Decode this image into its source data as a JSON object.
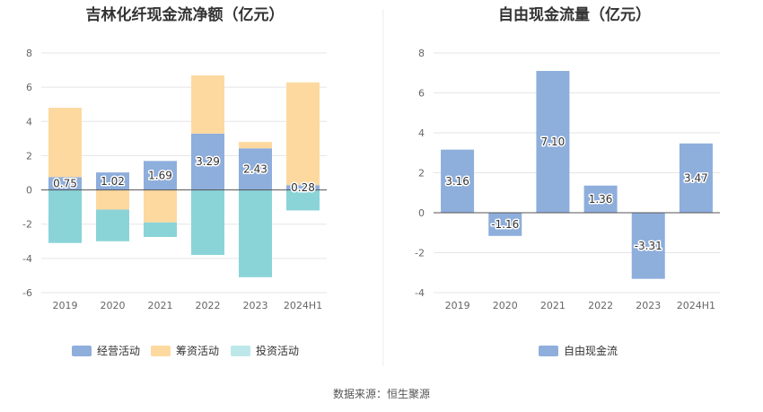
{
  "colors": {
    "operating": "#8eaedc",
    "financing": "#fdd9a0",
    "investing": "#8ad4d8",
    "investing_legend": "#bde8ea",
    "fcf": "#8eaedc"
  },
  "source": "数据来源：恒生聚源",
  "chart_data": [
    {
      "type": "bar",
      "stacked": true,
      "title": "吉林化纤现金流净额（亿元）",
      "categories": [
        "2019",
        "2020",
        "2021",
        "2022",
        "2023",
        "2024H1"
      ],
      "ylim": [
        -6,
        8
      ],
      "yticks": [
        -6,
        -4,
        -2,
        0,
        2,
        4,
        6,
        8
      ],
      "grid": true,
      "legend_position": "bottom",
      "series": [
        {
          "name": "经营活动",
          "values": [
            0.75,
            1.02,
            1.69,
            3.29,
            2.43,
            0.28
          ],
          "labels": [
            "0.75",
            "1.02",
            "1.69",
            "3.29",
            "2.43",
            "0.28"
          ]
        },
        {
          "name": "筹资活动",
          "values": [
            4.05,
            -1.15,
            -1.9,
            3.4,
            0.37,
            6.0
          ]
        },
        {
          "name": "投资活动",
          "values": [
            -3.1,
            -1.85,
            -0.85,
            -3.8,
            -5.1,
            -1.2
          ]
        }
      ]
    },
    {
      "type": "bar",
      "title": "自由现金流量（亿元）",
      "categories": [
        "2019",
        "2020",
        "2021",
        "2022",
        "2023",
        "2024H1"
      ],
      "ylim": [
        -4,
        8
      ],
      "yticks": [
        -4,
        -2,
        0,
        2,
        4,
        6,
        8
      ],
      "grid": true,
      "legend_position": "bottom",
      "series": [
        {
          "name": "自由现金流",
          "values": [
            3.16,
            -1.16,
            7.1,
            1.36,
            -3.31,
            3.47
          ],
          "labels": [
            "3.16",
            "-1.16",
            "7.10",
            "1.36",
            "-3.31",
            "3.47"
          ]
        }
      ]
    }
  ]
}
